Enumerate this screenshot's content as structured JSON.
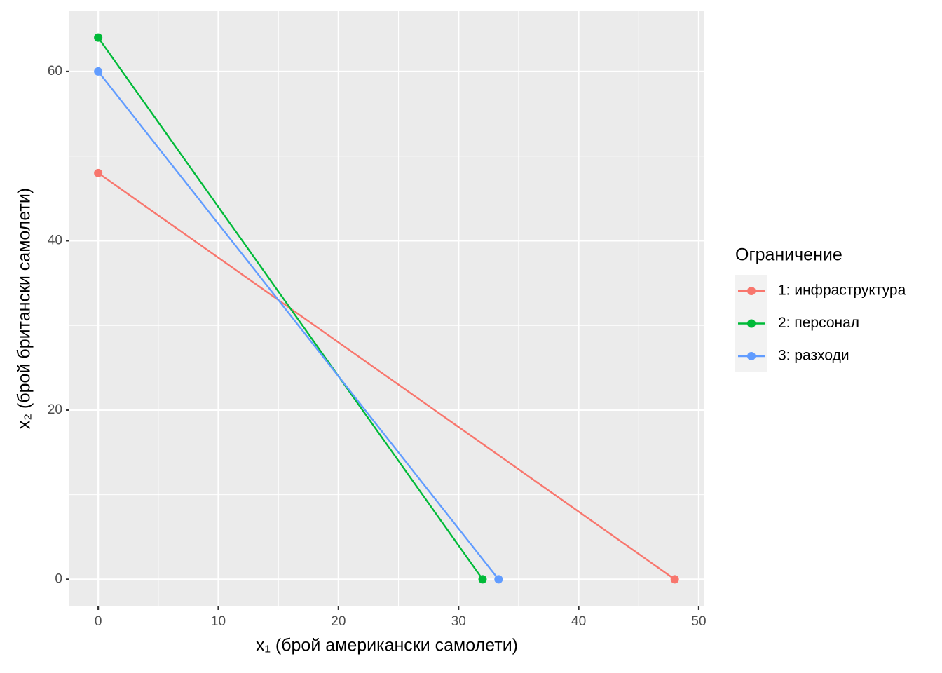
{
  "chart_data": {
    "type": "line",
    "xlabel": "x₁ (брой американски самолети)",
    "ylabel": "x₂ (брой британски самолети)",
    "legend_title": "Ограничение",
    "legend_position": "right",
    "grid": true,
    "minor_grid": true,
    "xlim": [
      -2.4,
      50.47
    ],
    "xticks": [
      0,
      10,
      20,
      30,
      40,
      50
    ],
    "ylim": [
      -3.2,
      67.2
    ],
    "yticks": [
      0,
      20,
      40,
      60
    ],
    "series": [
      {
        "name": "1: инфраструктура",
        "color": "#F8766D",
        "x": [
          0,
          48
        ],
        "values": [
          48,
          0
        ]
      },
      {
        "name": "2: персонал",
        "color": "#00BA38",
        "x": [
          0,
          32
        ],
        "values": [
          64,
          0
        ]
      },
      {
        "name": "3: разходи",
        "color": "#619CFF",
        "x": [
          0,
          33.33
        ],
        "values": [
          60,
          0
        ]
      }
    ]
  }
}
